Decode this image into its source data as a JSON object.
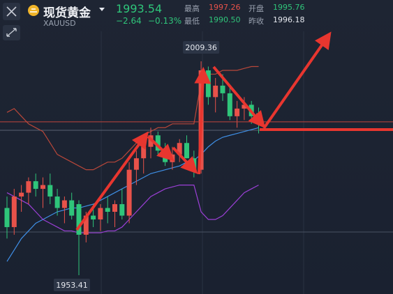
{
  "header": {
    "name": "现货黄金",
    "symbol": "XAUUSD",
    "price": "1993.54",
    "change": "−2.64",
    "change_pct": "−0.13%",
    "stats": [
      {
        "label": "最高",
        "value": "1997.26",
        "color": "#e8524a"
      },
      {
        "label": "开盘",
        "value": "1995.76",
        "color": "#2fc57a"
      },
      {
        "label": "最低",
        "value": "1990.50",
        "color": "#2fc57a"
      },
      {
        "label": "昨收",
        "value": "1996.18",
        "color": "#e6e9ef"
      }
    ]
  },
  "chart_data": {
    "type": "candlestick",
    "up_color": "#e8524a",
    "down_color": "#2fc57a",
    "ylim": [
      1948.5,
      2025.4
    ],
    "high_label": "2009.36",
    "low_label": "1953.41",
    "open": [
      1971,
      1966,
      1974,
      1975,
      1978,
      1976,
      1977,
      1974,
      1971,
      1973,
      1972,
      1964,
      1969,
      1968,
      1971,
      1970,
      1972,
      1969,
      1981,
      1984,
      1987,
      1990,
      1986,
      1983,
      1985,
      1988,
      1984,
      1981,
      2007,
      2000,
      2003,
      2001,
      1995,
      1997,
      1998,
      1995.76
    ],
    "high": [
      1974,
      1976,
      1977,
      1979,
      1980,
      1979,
      1980,
      1976,
      1974,
      1975,
      1973,
      1970,
      1972,
      1972,
      1974,
      1973,
      1976,
      1983,
      1986,
      1989,
      1992,
      1991,
      1988,
      1987,
      1989,
      1990,
      1986,
      2009.36,
      2008,
      2005,
      2006,
      2003,
      1999,
      2000,
      1999,
      1997.26
    ],
    "low": [
      1963,
      1964,
      1970,
      1972,
      1974,
      1971,
      1972,
      1969,
      1967,
      1968,
      1953.41,
      1962,
      1966,
      1965,
      1967,
      1966,
      1968,
      1967,
      1977,
      1980,
      1984,
      1985,
      1982,
      1981,
      1983,
      1984,
      1979,
      1980,
      1998,
      1996,
      1999,
      1994,
      1992,
      1994,
      1993,
      1990.5
    ],
    "close": [
      1966,
      1974,
      1975,
      1978,
      1976,
      1977,
      1974,
      1971,
      1973,
      1969,
      1964,
      1969,
      1968,
      1971,
      1970,
      1972,
      1969,
      1981,
      1984,
      1987,
      1990,
      1986,
      1983,
      1985,
      1988,
      1984,
      1981,
      2007,
      2000,
      2003,
      2001,
      1995,
      1997,
      1998,
      1995,
      1993.54
    ],
    "overlays": [
      {
        "color": "#b8473a",
        "values": [
          1996,
          1997,
          1995,
          1993,
          1992,
          1991,
          1988,
          1985,
          1984,
          1983,
          1982,
          1981,
          1981,
          1982,
          1983,
          1983,
          1984,
          1986,
          1988,
          1990,
          1991,
          1992,
          1992,
          1993,
          1993,
          1993,
          1993,
          2004,
          2006,
          2006,
          2007,
          2007,
          2007,
          2007.5,
          2008,
          2008
        ]
      },
      {
        "color": "#3f8fe6",
        "values": [
          1957,
          1960,
          1963,
          1965,
          1967,
          1968,
          1969,
          1970,
          1970.5,
          1971,
          1971,
          1971.5,
          1972,
          1973,
          1974,
          1975,
          1976,
          1977,
          1978,
          1979,
          1980,
          1980.5,
          1981,
          1981.5,
          1982,
          1983,
          1983.5,
          1985,
          1987,
          1988.5,
          1989.5,
          1990,
          1990.5,
          1991,
          1991.5,
          1992
        ]
      },
      {
        "color": "#9b3fd6",
        "values": [
          1975,
          1974,
          1973,
          1972,
          1970,
          1968,
          1967,
          1966,
          1965,
          1965,
          1964.5,
          1964.5,
          1964.5,
          1964.5,
          1965,
          1965,
          1966,
          1968,
          1970,
          1972,
          1974,
          1975,
          1976,
          1976.5,
          1977,
          1977,
          1977,
          1970,
          1968,
          1968,
          1969,
          1971,
          1973,
          1975,
          1976,
          1977
        ]
      }
    ]
  }
}
